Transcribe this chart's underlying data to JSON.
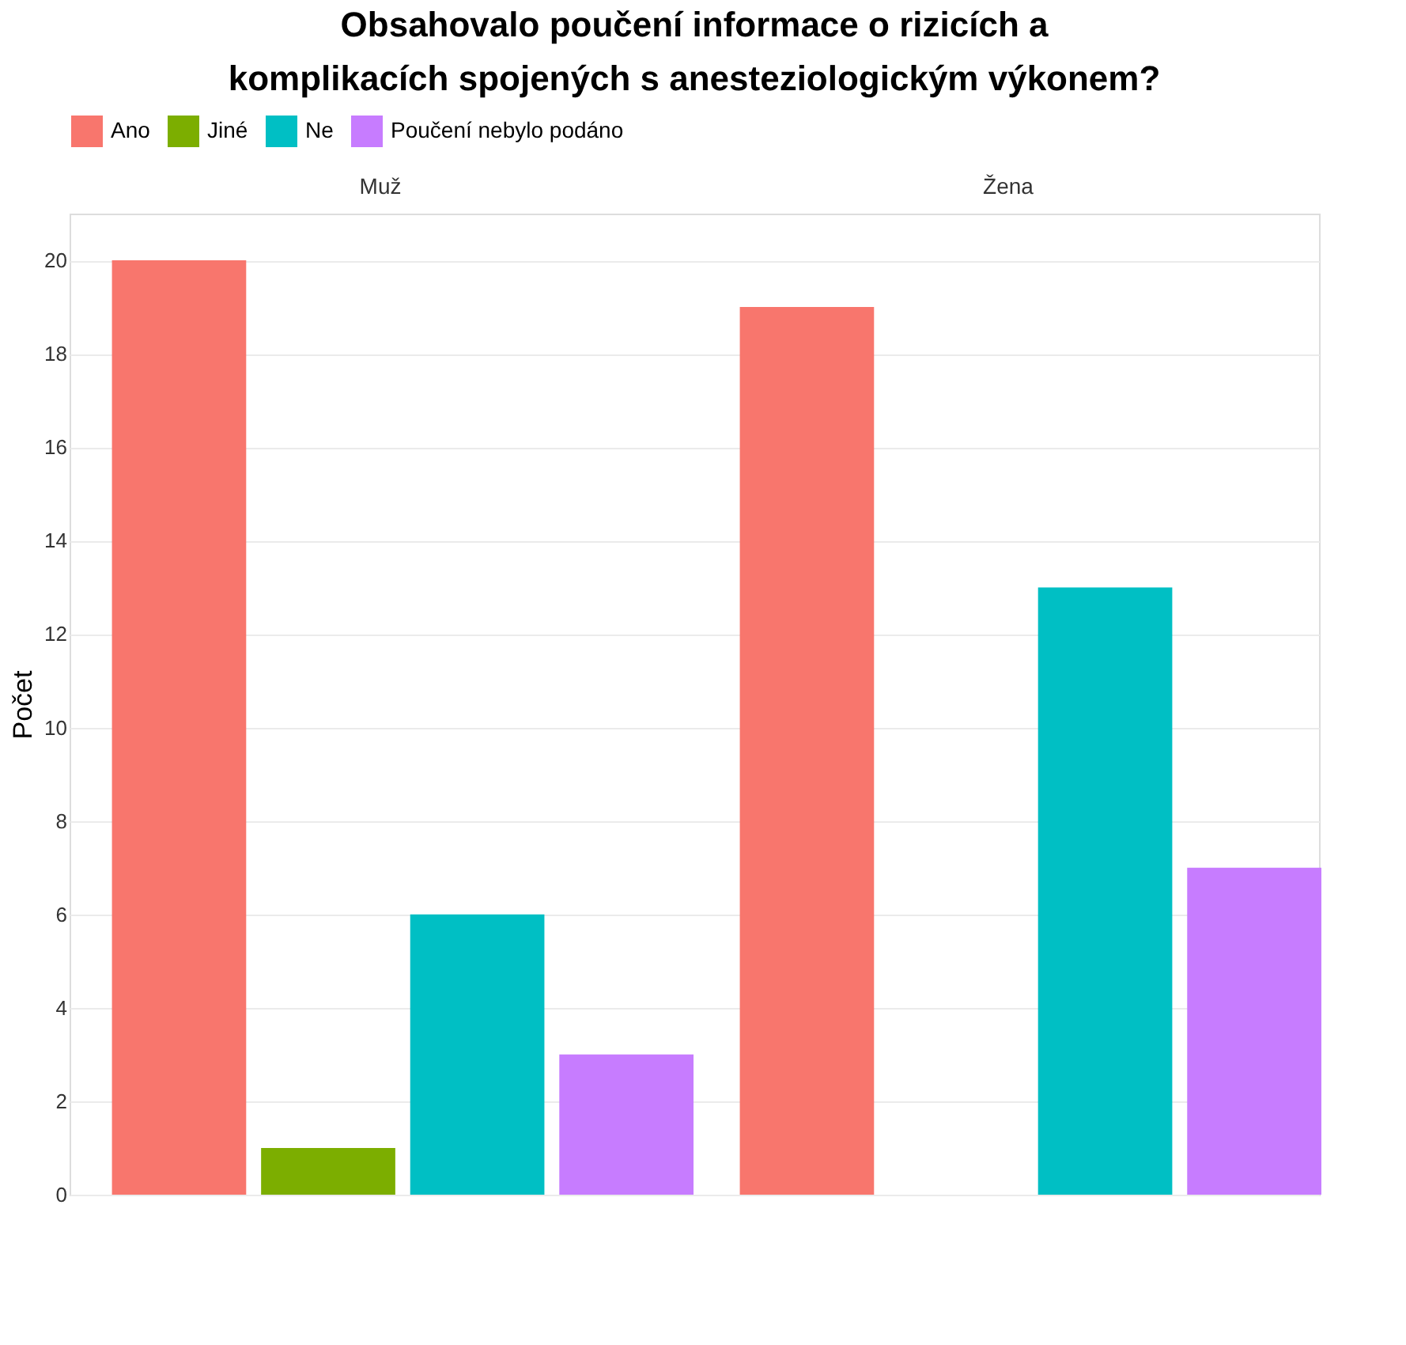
{
  "chart_data": {
    "type": "bar",
    "title": "Obsahovalo poučení informace o rizicích a komplikacích spojených s anesteziologickým výkonem?",
    "ylabel": "Počet",
    "categories": [
      "Muž",
      "Žena"
    ],
    "series": [
      {
        "name": "Ano",
        "color": "#f8766d",
        "values": [
          20,
          19
        ]
      },
      {
        "name": "Jiné",
        "color": "#7cae00",
        "values": [
          1,
          null
        ]
      },
      {
        "name": "Ne",
        "color": "#00bfc4",
        "values": [
          6,
          13
        ]
      },
      {
        "name": "Poučení nebylo podáno",
        "color": "#c77cff",
        "values": [
          3,
          7
        ]
      }
    ],
    "ylim": [
      0,
      21
    ],
    "yticks": [
      0,
      2,
      4,
      6,
      8,
      10,
      12,
      14,
      16,
      18,
      20
    ],
    "grid": "y",
    "legend": "top"
  }
}
